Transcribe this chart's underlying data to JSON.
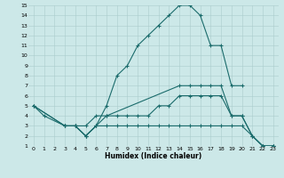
{
  "xlabel": "Humidex (Indice chaleur)",
  "bg_color": "#cce8e8",
  "grid_color": "#aacccc",
  "line_color": "#1a6b6b",
  "xlim": [
    -0.5,
    23.5
  ],
  "ylim": [
    1,
    15
  ],
  "xticks": [
    0,
    1,
    2,
    3,
    4,
    5,
    6,
    7,
    8,
    9,
    10,
    11,
    12,
    13,
    14,
    15,
    16,
    17,
    18,
    19,
    20,
    21,
    22,
    23
  ],
  "yticks": [
    1,
    2,
    3,
    4,
    5,
    6,
    7,
    8,
    9,
    10,
    11,
    12,
    13,
    14,
    15
  ],
  "line1_x": [
    0,
    1,
    3,
    4,
    5,
    6,
    7,
    8,
    9,
    10,
    11,
    12,
    13,
    14,
    15,
    16,
    17,
    18,
    19,
    20
  ],
  "line1_y": [
    5,
    4,
    3,
    3,
    2,
    3,
    5,
    8,
    9,
    11,
    12,
    13,
    14,
    15,
    15,
    14,
    11,
    11,
    7,
    7
  ],
  "line2_x": [
    0,
    3,
    4,
    5,
    6,
    7,
    14,
    15,
    16,
    17,
    18,
    19,
    20,
    21,
    22,
    23
  ],
  "line2_y": [
    5,
    3,
    3,
    3,
    4,
    4,
    7,
    7,
    7,
    7,
    7,
    4,
    4,
    2,
    1,
    1
  ],
  "line3_x": [
    0,
    3,
    4,
    5,
    6,
    7,
    8,
    9,
    10,
    11,
    12,
    13,
    14,
    15,
    16,
    17,
    18,
    19,
    20,
    21,
    22,
    23
  ],
  "line3_y": [
    5,
    3,
    3,
    2,
    3,
    3,
    3,
    3,
    3,
    3,
    3,
    3,
    3,
    3,
    3,
    3,
    3,
    3,
    3,
    2,
    1,
    1
  ],
  "line4_x": [
    3,
    4,
    5,
    6,
    7,
    8,
    9,
    10,
    11,
    12,
    13,
    14,
    15,
    16,
    17,
    18,
    19,
    20,
    21,
    22,
    23
  ],
  "line4_y": [
    3,
    3,
    2,
    3,
    4,
    4,
    4,
    4,
    4,
    5,
    5,
    6,
    6,
    6,
    6,
    6,
    4,
    4,
    2,
    1,
    1
  ],
  "tick_fontsize": 4.5,
  "xlabel_fontsize": 5.5
}
